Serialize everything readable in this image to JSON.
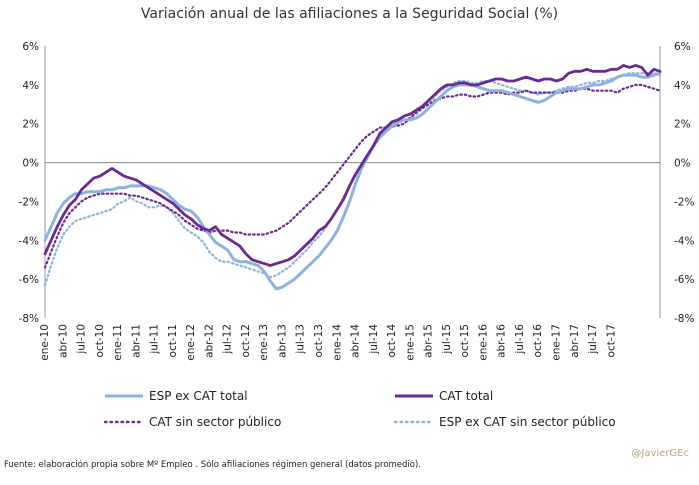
{
  "chart_data": {
    "type": "line",
    "title": "Variación anual de las afiliaciones a la Seguridad Social (%)",
    "ylim": [
      -8,
      6
    ],
    "yticks": [
      "6%",
      "4%",
      "2%",
      "0%",
      "-2%",
      "-4%",
      "-6%",
      "-8%"
    ],
    "ytick_values": [
      6,
      4,
      2,
      0,
      -2,
      -4,
      -6,
      -8
    ],
    "x_tick_labels": [
      "ene-10",
      "abr-10",
      "jul-10",
      "oct-10",
      "ene-11",
      "abr-11",
      "jul-11",
      "oct-11",
      "ene-12",
      "abr-12",
      "jul-12",
      "oct-12",
      "ene-13",
      "abr-13",
      "jul-13",
      "oct-13",
      "ene-14",
      "abr-14",
      "jul-14",
      "oct-14",
      "ene-15",
      "abr-15",
      "jul-15",
      "oct-15",
      "ene-16",
      "abr-16",
      "jul-16",
      "oct-16",
      "ene-17",
      "abr-17",
      "jul-17",
      "oct-17"
    ],
    "x_start": "ene-10",
    "x_end": "oct-17",
    "series": [
      {
        "name": "ESP ex CAT total",
        "color": "#8fb2dd",
        "style": "solid",
        "values": [
          -4.0,
          -3.3,
          -2.6,
          -2.1,
          -1.8,
          -1.6,
          -1.6,
          -1.5,
          -1.5,
          -1.5,
          -1.4,
          -1.4,
          -1.3,
          -1.3,
          -1.2,
          -1.2,
          -1.2,
          -1.2,
          -1.3,
          -1.4,
          -1.6,
          -1.9,
          -2.2,
          -2.4,
          -2.5,
          -2.8,
          -3.3,
          -3.7,
          -4.1,
          -4.3,
          -4.5,
          -5.0,
          -5.1,
          -5.1,
          -5.2,
          -5.3,
          -5.6,
          -6.1,
          -6.5,
          -6.4,
          -6.2,
          -6.0,
          -5.7,
          -5.4,
          -5.1,
          -4.8,
          -4.4,
          -4.0,
          -3.5,
          -2.8,
          -2.0,
          -1.1,
          -0.3,
          0.3,
          0.9,
          1.3,
          1.6,
          1.9,
          2.1,
          2.2,
          2.2,
          2.3,
          2.5,
          2.8,
          3.1,
          3.4,
          3.7,
          3.9,
          4.0,
          4.0,
          4.0,
          3.9,
          3.8,
          3.7,
          3.7,
          3.7,
          3.6,
          3.5,
          3.4,
          3.3,
          3.2,
          3.1,
          3.2,
          3.4,
          3.6,
          3.7,
          3.8,
          3.8,
          3.8,
          3.9,
          4.0,
          4.0,
          4.1,
          4.2,
          4.4,
          4.5,
          4.5,
          4.5,
          4.4,
          4.4,
          4.5,
          4.6
        ]
      },
      {
        "name": "CAT total",
        "color": "#6a2a91",
        "style": "solid",
        "values": [
          -4.7,
          -4.0,
          -3.3,
          -2.7,
          -2.2,
          -1.9,
          -1.4,
          -1.1,
          -0.8,
          -0.7,
          -0.5,
          -0.3,
          -0.5,
          -0.7,
          -0.8,
          -0.9,
          -1.1,
          -1.3,
          -1.5,
          -1.7,
          -1.9,
          -2.1,
          -2.4,
          -2.7,
          -2.9,
          -3.2,
          -3.4,
          -3.5,
          -3.3,
          -3.7,
          -3.9,
          -4.1,
          -4.3,
          -4.7,
          -5.0,
          -5.1,
          -5.2,
          -5.3,
          -5.2,
          -5.1,
          -5.0,
          -4.8,
          -4.5,
          -4.2,
          -3.9,
          -3.5,
          -3.3,
          -2.9,
          -2.4,
          -1.9,
          -1.2,
          -0.6,
          -0.1,
          0.4,
          0.9,
          1.5,
          1.8,
          2.1,
          2.2,
          2.4,
          2.5,
          2.7,
          2.9,
          3.2,
          3.5,
          3.8,
          4.0,
          4.0,
          4.1,
          4.1,
          4.0,
          4.0,
          4.1,
          4.2,
          4.3,
          4.3,
          4.2,
          4.2,
          4.3,
          4.4,
          4.3,
          4.2,
          4.3,
          4.3,
          4.2,
          4.3,
          4.6,
          4.7,
          4.7,
          4.8,
          4.7,
          4.7,
          4.7,
          4.8,
          4.8,
          5.0,
          4.9,
          5.0,
          4.9,
          4.5,
          4.8,
          4.7
        ]
      },
      {
        "name": "CAT sin sector público",
        "color": "#6a2a91",
        "style": "dotted",
        "values": [
          -5.4,
          -4.6,
          -3.8,
          -3.1,
          -2.6,
          -2.3,
          -2.0,
          -1.8,
          -1.7,
          -1.6,
          -1.6,
          -1.6,
          -1.6,
          -1.6,
          -1.7,
          -1.7,
          -1.8,
          -1.9,
          -2.0,
          -2.1,
          -2.3,
          -2.5,
          -2.7,
          -3.0,
          -3.2,
          -3.4,
          -3.5,
          -3.6,
          -3.5,
          -3.5,
          -3.5,
          -3.6,
          -3.6,
          -3.7,
          -3.7,
          -3.7,
          -3.7,
          -3.6,
          -3.5,
          -3.3,
          -3.1,
          -2.8,
          -2.5,
          -2.2,
          -1.9,
          -1.6,
          -1.3,
          -0.9,
          -0.5,
          -0.1,
          0.3,
          0.7,
          1.1,
          1.4,
          1.6,
          1.8,
          1.8,
          1.9,
          1.9,
          2.0,
          2.3,
          2.6,
          2.8,
          3.0,
          3.2,
          3.3,
          3.4,
          3.4,
          3.5,
          3.5,
          3.4,
          3.4,
          3.5,
          3.6,
          3.6,
          3.6,
          3.5,
          3.6,
          3.6,
          3.7,
          3.6,
          3.6,
          3.6,
          3.6,
          3.6,
          3.6,
          3.7,
          3.7,
          3.8,
          3.8,
          3.7,
          3.7,
          3.7,
          3.7,
          3.6,
          3.8,
          3.9,
          4.0,
          4.0,
          3.9,
          3.8,
          3.7
        ]
      },
      {
        "name": "ESP ex CAT sin sector público",
        "color": "#8fb2dd",
        "style": "dotted",
        "values": [
          -6.3,
          -5.3,
          -4.4,
          -3.7,
          -3.3,
          -3.0,
          -2.9,
          -2.8,
          -2.7,
          -2.6,
          -2.5,
          -2.4,
          -2.1,
          -2.0,
          -1.8,
          -2.0,
          -2.1,
          -2.3,
          -2.3,
          -2.2,
          -2.3,
          -2.6,
          -3.0,
          -3.4,
          -3.6,
          -3.8,
          -4.1,
          -4.6,
          -4.9,
          -5.1,
          -5.1,
          -5.2,
          -5.3,
          -5.4,
          -5.5,
          -5.6,
          -5.7,
          -5.9,
          -5.8,
          -5.6,
          -5.4,
          -5.1,
          -4.8,
          -4.5,
          -4.1,
          -3.8,
          -3.4,
          -2.9,
          -2.4,
          -1.8,
          -1.2,
          -0.7,
          -0.2,
          0.3,
          0.8,
          1.3,
          1.6,
          1.8,
          2.0,
          2.2,
          2.3,
          2.5,
          2.8,
          3.1,
          3.4,
          3.7,
          3.9,
          4.1,
          4.2,
          4.2,
          4.1,
          4.1,
          4.2,
          4.2,
          4.1,
          4.0,
          3.9,
          3.8,
          3.7,
          3.7,
          3.6,
          3.5,
          3.6,
          3.6,
          3.7,
          3.8,
          3.9,
          3.9,
          4.0,
          4.1,
          4.1,
          4.2,
          4.2,
          4.3,
          4.4,
          4.5,
          4.6,
          4.6,
          4.6,
          4.6,
          4.6,
          4.5
        ]
      }
    ],
    "legend": {
      "placement": "bottom",
      "entries": [
        "ESP ex CAT total",
        "CAT total",
        "CAT sin sector público",
        "ESP ex CAT sin sector público"
      ]
    },
    "grid": false,
    "zero_line": true,
    "secondary_y_axis": true
  },
  "footer": {
    "source": "Fuente: elaboración propia sobre Mº Empleo . Sólo afiliaciones régimen general (datos promedio).",
    "credit": "@JavierGEc"
  }
}
